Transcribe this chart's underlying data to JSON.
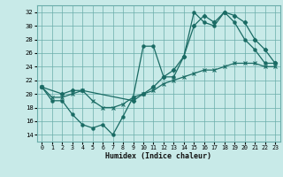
{
  "background_color": "#c8eae8",
  "grid_color": "#6aadaa",
  "line_color": "#1a6b64",
  "xlabel": "Humidex (Indice chaleur)",
  "xlim": [
    -0.5,
    23.5
  ],
  "ylim": [
    13,
    33
  ],
  "yticks": [
    14,
    16,
    18,
    20,
    22,
    24,
    26,
    28,
    30,
    32
  ],
  "xticks": [
    0,
    1,
    2,
    3,
    4,
    5,
    6,
    7,
    8,
    9,
    10,
    11,
    12,
    13,
    14,
    15,
    16,
    17,
    18,
    19,
    20,
    21,
    22,
    23
  ],
  "line1_x": [
    0,
    1,
    2,
    3,
    4,
    5,
    6,
    7,
    8,
    9,
    10,
    11,
    12,
    13,
    14,
    15,
    16,
    17,
    18,
    19,
    20,
    21,
    22,
    23
  ],
  "line1_y": [
    21,
    19,
    19,
    17,
    15.5,
    15,
    15.5,
    14,
    16.7,
    19.5,
    27,
    27,
    22.5,
    22.5,
    25.5,
    32,
    30.5,
    30,
    32,
    30.5,
    28,
    26.5,
    24.5,
    24.5
  ],
  "line2_x": [
    0,
    2,
    3,
    4,
    9,
    10,
    11,
    12,
    13,
    14,
    15,
    16,
    17,
    18,
    19,
    20,
    21,
    22,
    23
  ],
  "line2_y": [
    21,
    20,
    20.5,
    20.5,
    19,
    20,
    21,
    22.5,
    23.5,
    25.5,
    30,
    31.5,
    30.5,
    32,
    31.5,
    30.5,
    28,
    26.5,
    24.5
  ],
  "line3_x": [
    0,
    1,
    2,
    3,
    4,
    5,
    6,
    7,
    8,
    9,
    10,
    11,
    12,
    13,
    14,
    15,
    16,
    17,
    18,
    19,
    20,
    21,
    22,
    23
  ],
  "line3_y": [
    21,
    19.5,
    19.5,
    20,
    20.5,
    19,
    18,
    18,
    18.5,
    19.5,
    20,
    20.5,
    21.5,
    22,
    22.5,
    23,
    23.5,
    23.5,
    24,
    24.5,
    24.5,
    24.5,
    24,
    24
  ]
}
